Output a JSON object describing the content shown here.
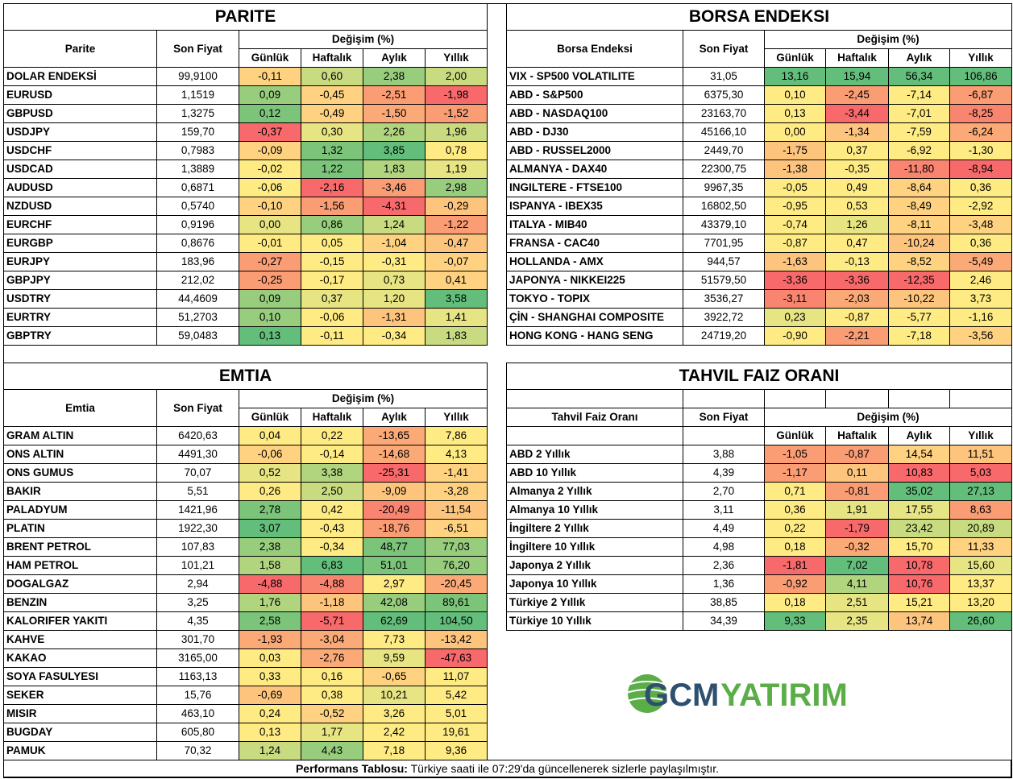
{
  "colors": {
    "red": "#F8696B",
    "red2": "#F98570",
    "orange_red": "#FA9C74",
    "orange": "#FBAA77",
    "light_orange": "#FDC47D",
    "pale_orange": "#FED280",
    "yellow": "#FFEB84",
    "yellow_green": "#E6E483",
    "lime": "#C9DB81",
    "lime2": "#B1D47F",
    "green": "#98CD7E",
    "green2": "#7CC47A",
    "deep_green": "#63BE7B",
    "logo_blue": "#2E4F6E",
    "logo_green": "#5BAE47"
  },
  "common": {
    "son_fiyat": "Son Fiyat",
    "degisim": "Değişim (%)",
    "gunluk": "Günlük",
    "haftalik": "Haftalık",
    "aylik": "Aylık",
    "yillik": "Yıllık"
  },
  "parite": {
    "title": "PARITE",
    "name_header": "Parite",
    "rows": [
      {
        "name": "DOLAR ENDEKSİ",
        "price": "99,9100",
        "v": [
          "-0,11",
          "0,60",
          "2,38",
          "2,00"
        ],
        "c": [
          "pale_orange",
          "lime",
          "green",
          "lime"
        ]
      },
      {
        "name": "EURUSD",
        "price": "1,1519",
        "v": [
          "0,09",
          "-0,45",
          "-2,51",
          "-1,98"
        ],
        "c": [
          "green",
          "pale_orange",
          "orange_red",
          "red"
        ]
      },
      {
        "name": "GBPUSD",
        "price": "1,3275",
        "v": [
          "0,12",
          "-0,49",
          "-1,50",
          "-1,52"
        ],
        "c": [
          "green2",
          "pale_orange",
          "orange",
          "orange_red"
        ]
      },
      {
        "name": "USDJPY",
        "price": "159,70",
        "v": [
          "-0,37",
          "0,30",
          "2,26",
          "1,96"
        ],
        "c": [
          "red",
          "yellow_green",
          "lime2",
          "lime"
        ]
      },
      {
        "name": "USDCHF",
        "price": "0,7983",
        "v": [
          "-0,09",
          "1,32",
          "3,85",
          "0,78"
        ],
        "c": [
          "pale_orange",
          "green2",
          "deep_green",
          "yellow"
        ]
      },
      {
        "name": "USDCAD",
        "price": "1,3889",
        "v": [
          "-0,02",
          "1,22",
          "1,83",
          "1,19"
        ],
        "c": [
          "yellow",
          "green2",
          "lime2",
          "yellow_green"
        ]
      },
      {
        "name": "AUDUSD",
        "price": "0,6871",
        "v": [
          "-0,06",
          "-2,16",
          "-3,46",
          "2,98"
        ],
        "c": [
          "yellow",
          "red",
          "orange_red",
          "green"
        ]
      },
      {
        "name": "NZDUSD",
        "price": "0,5740",
        "v": [
          "-0,10",
          "-1,56",
          "-4,31",
          "-0,29"
        ],
        "c": [
          "pale_orange",
          "orange_red",
          "red",
          "light_orange"
        ]
      },
      {
        "name": "EURCHF",
        "price": "0,9196",
        "v": [
          "0,00",
          "0,86",
          "1,24",
          "-1,22"
        ],
        "c": [
          "yellow_green",
          "green",
          "lime",
          "orange_red"
        ]
      },
      {
        "name": "EURGBP",
        "price": "0,8676",
        "v": [
          "-0,01",
          "0,05",
          "-1,04",
          "-0,47"
        ],
        "c": [
          "yellow",
          "yellow",
          "pale_orange",
          "light_orange"
        ]
      },
      {
        "name": "EURJPY",
        "price": "183,96",
        "v": [
          "-0,27",
          "-0,15",
          "-0,31",
          "-0,07"
        ],
        "c": [
          "orange_red",
          "yellow",
          "yellow",
          "pale_orange"
        ]
      },
      {
        "name": "GBPJPY",
        "price": "212,02",
        "v": [
          "-0,25",
          "-0,17",
          "0,73",
          "0,41"
        ],
        "c": [
          "orange_red",
          "yellow",
          "yellow_green",
          "pale_orange"
        ]
      },
      {
        "name": "USDTRY",
        "price": "44,4609",
        "v": [
          "0,09",
          "0,37",
          "1,20",
          "3,58"
        ],
        "c": [
          "green",
          "yellow_green",
          "yellow_green",
          "deep_green"
        ]
      },
      {
        "name": "EURTRY",
        "price": "51,2703",
        "v": [
          "0,10",
          "-0,06",
          "-1,31",
          "1,41"
        ],
        "c": [
          "green",
          "yellow",
          "light_orange",
          "yellow_green"
        ]
      },
      {
        "name": "GBPTRY",
        "price": "59,0483",
        "v": [
          "0,13",
          "-0,11",
          "-0,34",
          "1,83"
        ],
        "c": [
          "deep_green",
          "yellow",
          "yellow",
          "lime"
        ]
      }
    ]
  },
  "borsa": {
    "title": "BORSA ENDEKSI",
    "name_header": "Borsa Endeksi",
    "rows": [
      {
        "name": "VIX  - SP500 VOLATILITE",
        "price": "31,05",
        "v": [
          "13,16",
          "15,94",
          "56,34",
          "106,86"
        ],
        "c": [
          "deep_green",
          "deep_green",
          "deep_green",
          "deep_green"
        ]
      },
      {
        "name": "ABD - S&P500",
        "price": "6375,30",
        "v": [
          "0,10",
          "-2,45",
          "-7,14",
          "-6,87"
        ],
        "c": [
          "yellow",
          "orange_red",
          "yellow",
          "orange_red"
        ]
      },
      {
        "name": "ABD - NASDAQ100",
        "price": "23163,70",
        "v": [
          "0,13",
          "-3,44",
          "-7,01",
          "-8,25"
        ],
        "c": [
          "yellow",
          "red",
          "yellow",
          "red2"
        ]
      },
      {
        "name": "ABD - DJ30",
        "price": "45166,10",
        "v": [
          "0,00",
          "-1,34",
          "-7,59",
          "-6,24"
        ],
        "c": [
          "yellow",
          "light_orange",
          "yellow",
          "orange"
        ]
      },
      {
        "name": "ABD - RUSSEL2000",
        "price": "2449,70",
        "v": [
          "-1,75",
          "0,37",
          "-6,92",
          "-1,30"
        ],
        "c": [
          "light_orange",
          "yellow",
          "yellow",
          "yellow"
        ]
      },
      {
        "name": "ALMANYA - DAX40",
        "price": "22300,75",
        "v": [
          "-1,38",
          "-0,35",
          "-11,80",
          "-8,94"
        ],
        "c": [
          "light_orange",
          "yellow",
          "red2",
          "red"
        ]
      },
      {
        "name": "INGILTERE - FTSE100",
        "price": "9967,35",
        "v": [
          "-0,05",
          "0,49",
          "-8,64",
          "0,36"
        ],
        "c": [
          "yellow",
          "yellow",
          "pale_orange",
          "yellow"
        ]
      },
      {
        "name": "ISPANYA - IBEX35",
        "price": "16802,50",
        "v": [
          "-0,95",
          "0,53",
          "-8,49",
          "-2,92"
        ],
        "c": [
          "yellow",
          "yellow",
          "pale_orange",
          "yellow"
        ]
      },
      {
        "name": "ITALYA - MIB40",
        "price": "43379,10",
        "v": [
          "-0,74",
          "1,26",
          "-8,11",
          "-3,48"
        ],
        "c": [
          "yellow",
          "yellow_green",
          "pale_orange",
          "pale_orange"
        ]
      },
      {
        "name": "FRANSA - CAC40",
        "price": "7701,95",
        "v": [
          "-0,87",
          "0,47",
          "-10,24",
          "0,36"
        ],
        "c": [
          "yellow",
          "yellow",
          "light_orange",
          "yellow"
        ]
      },
      {
        "name": "HOLLANDA - AMX",
        "price": "944,57",
        "v": [
          "-1,63",
          "-0,13",
          "-8,52",
          "-5,49"
        ],
        "c": [
          "light_orange",
          "yellow",
          "pale_orange",
          "orange"
        ]
      },
      {
        "name": "JAPONYA - NIKKEI225",
        "price": "51579,50",
        "v": [
          "-3,36",
          "-3,36",
          "-12,35",
          "2,46"
        ],
        "c": [
          "red",
          "red",
          "red",
          "yellow"
        ]
      },
      {
        "name": "TOKYO - TOPIX",
        "price": "3536,27",
        "v": [
          "-3,11",
          "-2,03",
          "-10,22",
          "3,73"
        ],
        "c": [
          "red2",
          "orange",
          "light_orange",
          "yellow"
        ]
      },
      {
        "name": "ÇİN - SHANGHAI COMPOSITE",
        "price": "3922,72",
        "v": [
          "0,23",
          "-0,87",
          "-5,77",
          "-1,16"
        ],
        "c": [
          "yellow_green",
          "yellow",
          "yellow",
          "yellow"
        ]
      },
      {
        "name": "HONG KONG - HANG SENG",
        "price": "24719,20",
        "v": [
          "-0,90",
          "-2,21",
          "-7,18",
          "-3,56"
        ],
        "c": [
          "yellow",
          "orange_red",
          "yellow",
          "pale_orange"
        ]
      }
    ]
  },
  "emtia": {
    "title": "EMTIA",
    "name_header": "Emtia",
    "rows": [
      {
        "name": "GRAM ALTIN",
        "price": "6420,63",
        "v": [
          "0,04",
          "0,22",
          "-13,65",
          "7,86"
        ],
        "c": [
          "yellow",
          "yellow",
          "orange",
          "yellow"
        ]
      },
      {
        "name": "ONS ALTIN",
        "price": "4491,30",
        "v": [
          "-0,06",
          "-0,14",
          "-14,68",
          "4,13"
        ],
        "c": [
          "pale_orange",
          "yellow",
          "orange",
          "yellow"
        ]
      },
      {
        "name": "ONS GUMUS",
        "price": "70,07",
        "v": [
          "0,52",
          "3,38",
          "-25,31",
          "-1,41"
        ],
        "c": [
          "yellow_green",
          "lime2",
          "red",
          "pale_orange"
        ]
      },
      {
        "name": "BAKIR",
        "price": "5,51",
        "v": [
          "0,26",
          "2,50",
          "-9,09",
          "-3,28"
        ],
        "c": [
          "yellow",
          "lime",
          "light_orange",
          "pale_orange"
        ]
      },
      {
        "name": "PALADYUM",
        "price": "1421,96",
        "v": [
          "2,78",
          "0,42",
          "-20,49",
          "-11,54"
        ],
        "c": [
          "green2",
          "yellow",
          "red2",
          "light_orange"
        ]
      },
      {
        "name": "PLATIN",
        "price": "1922,30",
        "v": [
          "3,07",
          "-0,43",
          "-18,76",
          "-6,51"
        ],
        "c": [
          "deep_green",
          "yellow",
          "orange_red",
          "pale_orange"
        ]
      },
      {
        "name": "BRENT PETROL",
        "price": "107,83",
        "v": [
          "2,38",
          "-0,34",
          "48,77",
          "77,03"
        ],
        "c": [
          "green",
          "yellow",
          "green2",
          "green"
        ]
      },
      {
        "name": "HAM PETROL",
        "price": "101,21",
        "v": [
          "1,58",
          "6,83",
          "51,01",
          "76,20"
        ],
        "c": [
          "lime2",
          "deep_green",
          "green2",
          "green"
        ]
      },
      {
        "name": "DOGALGAZ",
        "price": "2,94",
        "v": [
          "-4,88",
          "-4,88",
          "2,97",
          "-20,45"
        ],
        "c": [
          "red",
          "red2",
          "yellow",
          "orange"
        ]
      },
      {
        "name": "BENZIN",
        "price": "3,25",
        "v": [
          "1,76",
          "-1,18",
          "42,08",
          "89,61"
        ],
        "c": [
          "lime2",
          "light_orange",
          "green",
          "green2"
        ]
      },
      {
        "name": "KALORIFER YAKITI",
        "price": "4,35",
        "v": [
          "2,58",
          "-5,71",
          "62,69",
          "104,50"
        ],
        "c": [
          "green2",
          "red",
          "deep_green",
          "deep_green"
        ]
      },
      {
        "name": "KAHVE",
        "price": "301,70",
        "v": [
          "-1,93",
          "-3,04",
          "7,73",
          "-13,42"
        ],
        "c": [
          "orange",
          "orange",
          "yellow",
          "light_orange"
        ]
      },
      {
        "name": "KAKAO",
        "price": "3165,00",
        "v": [
          "0,03",
          "-2,76",
          "9,59",
          "-47,63"
        ],
        "c": [
          "yellow",
          "orange",
          "yellow_green",
          "red"
        ]
      },
      {
        "name": "SOYA FASULYESI",
        "price": "1163,13",
        "v": [
          "0,33",
          "0,16",
          "-0,65",
          "11,07"
        ],
        "c": [
          "yellow",
          "yellow",
          "pale_orange",
          "yellow"
        ]
      },
      {
        "name": "SEKER",
        "price": "15,76",
        "v": [
          "-0,69",
          "0,38",
          "10,21",
          "5,42"
        ],
        "c": [
          "light_orange",
          "yellow",
          "yellow_green",
          "yellow"
        ]
      },
      {
        "name": "MISIR",
        "price": "463,10",
        "v": [
          "0,24",
          "-0,52",
          "3,26",
          "5,01"
        ],
        "c": [
          "yellow",
          "pale_orange",
          "yellow",
          "yellow"
        ]
      },
      {
        "name": "BUGDAY",
        "price": "605,80",
        "v": [
          "0,13",
          "1,77",
          "2,42",
          "19,61"
        ],
        "c": [
          "yellow",
          "yellow_green",
          "yellow",
          "yellow"
        ]
      },
      {
        "name": "PAMUK",
        "price": "70,32",
        "v": [
          "1,24",
          "4,43",
          "7,18",
          "9,36"
        ],
        "c": [
          "lime",
          "green",
          "yellow",
          "yellow"
        ]
      }
    ]
  },
  "tahvil": {
    "title": "TAHVIL FAIZ ORANI",
    "name_header": "Tahvil Faiz Oranı",
    "rows": [
      {
        "name": "ABD 2 Yıllık",
        "price": "3,88",
        "v": [
          "-1,05",
          "-0,87",
          "14,54",
          "11,51"
        ],
        "c": [
          "orange_red",
          "orange_red",
          "pale_orange",
          "light_orange"
        ]
      },
      {
        "name": "ABD 10 Yıllık",
        "price": "4,39",
        "v": [
          "-1,17",
          "0,11",
          "10,83",
          "5,03"
        ],
        "c": [
          "orange_red",
          "light_orange",
          "red",
          "red"
        ]
      },
      {
        "name": "Almanya 2 Yıllık",
        "price": "2,70",
        "v": [
          "0,71",
          "-0,81",
          "35,02",
          "27,13"
        ],
        "c": [
          "yellow",
          "orange_red",
          "deep_green",
          "deep_green"
        ]
      },
      {
        "name": "Almanya 10 Yıllık",
        "price": "3,11",
        "v": [
          "0,36",
          "1,91",
          "17,55",
          "8,63"
        ],
        "c": [
          "yellow",
          "yellow_green",
          "yellow_green",
          "orange_red"
        ]
      },
      {
        "name": "İngiltere 2 Yıllık",
        "price": "4,49",
        "v": [
          "0,22",
          "-1,79",
          "23,42",
          "20,89"
        ],
        "c": [
          "yellow",
          "red",
          "lime",
          "lime"
        ]
      },
      {
        "name": "İngiltere 10 Yıllık",
        "price": "4,98",
        "v": [
          "0,18",
          "-0,32",
          "15,70",
          "11,33"
        ],
        "c": [
          "yellow",
          "orange",
          "yellow",
          "pale_orange"
        ]
      },
      {
        "name": "Japonya 2 Yıllık",
        "price": "2,36",
        "v": [
          "-1,81",
          "7,02",
          "10,78",
          "15,60"
        ],
        "c": [
          "red",
          "deep_green",
          "red",
          "yellow_green"
        ]
      },
      {
        "name": "Japonya 10 Yıllık",
        "price": "1,36",
        "v": [
          "-0,92",
          "4,11",
          "10,76",
          "13,37"
        ],
        "c": [
          "orange_red",
          "lime2",
          "red",
          "yellow"
        ]
      },
      {
        "name": "Türkiye 2 Yıllık",
        "price": "38,85",
        "v": [
          "0,18",
          "2,51",
          "15,21",
          "13,20"
        ],
        "c": [
          "yellow",
          "yellow_green",
          "yellow",
          "yellow"
        ]
      },
      {
        "name": "Türkiye 10 Yıllık",
        "price": "34,39",
        "v": [
          "9,33",
          "2,35",
          "13,74",
          "26,60"
        ],
        "c": [
          "deep_green",
          "yellow_green",
          "light_orange",
          "deep_green"
        ]
      }
    ]
  },
  "logo": {
    "text_a": "GCM",
    "text_b": "YATIRIM"
  },
  "footer": {
    "bold": "Performans Tablosu:",
    "text": " Türkiye saati ile 07:29'da güncellenerek sizlerle paylaşılmıştır."
  }
}
